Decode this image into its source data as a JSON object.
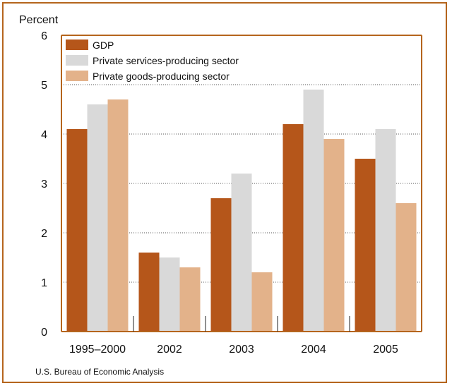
{
  "chart_data": {
    "type": "bar",
    "categories": [
      "1995–2000",
      "2002",
      "2003",
      "2004",
      "2005"
    ],
    "series": [
      {
        "name": "GDP",
        "values": [
          4.1,
          1.6,
          2.7,
          4.2,
          3.5
        ],
        "color": "#b5561a"
      },
      {
        "name": "Private services-producing sector",
        "values": [
          4.6,
          1.5,
          3.2,
          4.9,
          4.1
        ],
        "color": "#d9d9d9"
      },
      {
        "name": "Private goods-producing sector",
        "values": [
          4.7,
          1.3,
          1.2,
          3.9,
          2.6
        ],
        "color": "#e3b28a"
      }
    ],
    "ylabel": "Percent",
    "ylim": [
      0,
      6
    ],
    "yticks": [
      0,
      1,
      2,
      3,
      4,
      5,
      6
    ],
    "grid": true,
    "legend_position": "top-left"
  },
  "source": "U.S. Bureau of Economic Analysis",
  "colors": {
    "frame": "#b5651d",
    "axis": "#b5651d"
  }
}
